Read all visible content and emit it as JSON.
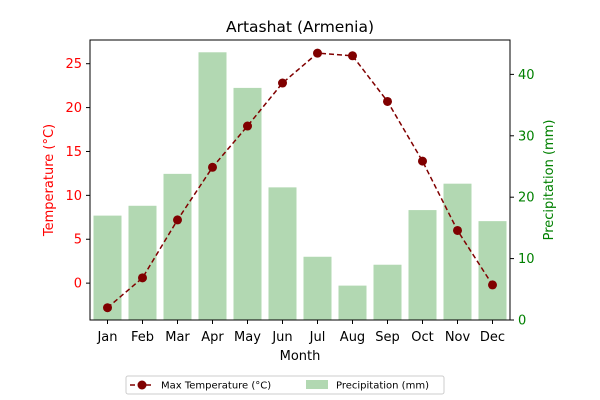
{
  "chart_data": {
    "type": "bar+line",
    "title": "Artashat (Armenia)",
    "xlabel": "Month",
    "categories": [
      "Jan",
      "Feb",
      "Mar",
      "Apr",
      "May",
      "Jun",
      "Jul",
      "Aug",
      "Sep",
      "Oct",
      "Nov",
      "Dec"
    ],
    "left_axis": {
      "label": "Temperature (°C)",
      "color": "#ff0000",
      "ylim": [
        -4.2,
        27.7
      ],
      "ticks": [
        0,
        5,
        10,
        15,
        20,
        25
      ]
    },
    "right_axis": {
      "label": "Precipitation (mm)",
      "color": "#008000",
      "ylim": [
        0,
        45.6
      ],
      "ticks": [
        0,
        10,
        20,
        30,
        40
      ]
    },
    "series": [
      {
        "name": "Max Temperature (°C)",
        "type": "line",
        "axis": "left",
        "color": "#800000",
        "style": "dashed",
        "marker": "circle",
        "values": [
          -2.8,
          0.6,
          7.2,
          13.2,
          17.9,
          22.8,
          26.2,
          25.9,
          20.7,
          13.9,
          6.0,
          -0.2
        ]
      },
      {
        "name": "Precipitation (mm)",
        "type": "bar",
        "axis": "right",
        "color": "#b2d8b2",
        "values": [
          17.0,
          18.6,
          23.8,
          43.6,
          37.8,
          21.6,
          10.3,
          5.6,
          9.0,
          17.9,
          22.2,
          16.1
        ]
      }
    ],
    "legend": {
      "placement": "bottom-center",
      "entries": [
        "Max Temperature (°C)",
        "Precipitation (mm)"
      ]
    }
  }
}
